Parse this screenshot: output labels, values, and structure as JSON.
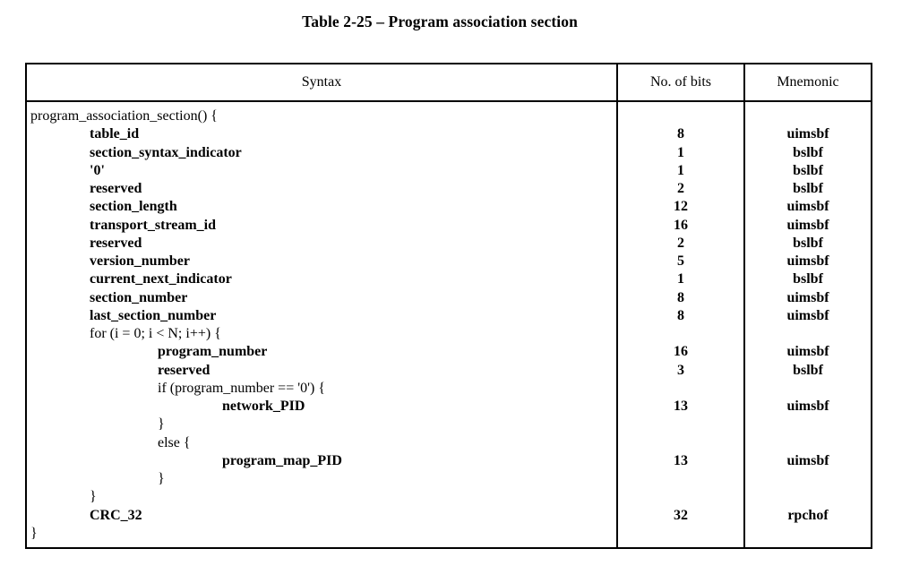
{
  "title": "Table 2-25 – Program association section",
  "table": {
    "headers": {
      "syntax": "Syntax",
      "bits": "No. of bits",
      "mnemonic": "Mnemonic"
    },
    "rows": [
      {
        "syntax": "program_association_section() {",
        "indent": 0,
        "bold": false,
        "bits": "",
        "mnemonic": ""
      },
      {
        "syntax": "table_id",
        "indent": 1,
        "bold": true,
        "bits": "8",
        "mnemonic": "uimsbf"
      },
      {
        "syntax": "section_syntax_indicator",
        "indent": 1,
        "bold": true,
        "bits": "1",
        "mnemonic": "bslbf"
      },
      {
        "syntax": "'0'",
        "indent": 1,
        "bold": true,
        "bits": "1",
        "mnemonic": "bslbf"
      },
      {
        "syntax": "reserved",
        "indent": 1,
        "bold": true,
        "bits": "2",
        "mnemonic": "bslbf"
      },
      {
        "syntax": "section_length",
        "indent": 1,
        "bold": true,
        "bits": "12",
        "mnemonic": "uimsbf"
      },
      {
        "syntax": "transport_stream_id",
        "indent": 1,
        "bold": true,
        "bits": "16",
        "mnemonic": "uimsbf"
      },
      {
        "syntax": "reserved",
        "indent": 1,
        "bold": true,
        "bits": "2",
        "mnemonic": "bslbf"
      },
      {
        "syntax": "version_number",
        "indent": 1,
        "bold": true,
        "bits": "5",
        "mnemonic": "uimsbf"
      },
      {
        "syntax": "current_next_indicator",
        "indent": 1,
        "bold": true,
        "bits": "1",
        "mnemonic": "bslbf"
      },
      {
        "syntax": "section_number",
        "indent": 1,
        "bold": true,
        "bits": "8",
        "mnemonic": "uimsbf"
      },
      {
        "syntax": "last_section_number",
        "indent": 1,
        "bold": true,
        "bits": "8",
        "mnemonic": "uimsbf"
      },
      {
        "syntax": "for (i = 0; i < N; i++) {",
        "indent": 1,
        "bold": false,
        "bits": "",
        "mnemonic": ""
      },
      {
        "syntax": "program_number",
        "indent": 2,
        "bold": true,
        "bits": "16",
        "mnemonic": "uimsbf"
      },
      {
        "syntax": "reserved",
        "indent": 2,
        "bold": true,
        "bits": "3",
        "mnemonic": "bslbf"
      },
      {
        "syntax": "if (program_number == '0') {",
        "indent": 2,
        "bold": false,
        "bits": "",
        "mnemonic": ""
      },
      {
        "syntax": "network_PID",
        "indent": 3,
        "bold": true,
        "bits": "13",
        "mnemonic": "uimsbf"
      },
      {
        "syntax": "}",
        "indent": 2,
        "bold": false,
        "bits": "",
        "mnemonic": ""
      },
      {
        "syntax": "else {",
        "indent": 2,
        "bold": false,
        "bits": "",
        "mnemonic": ""
      },
      {
        "syntax": "program_map_PID",
        "indent": 3,
        "bold": true,
        "bits": "13",
        "mnemonic": "uimsbf"
      },
      {
        "syntax": "}",
        "indent": 2,
        "bold": false,
        "bits": "",
        "mnemonic": ""
      },
      {
        "syntax": "}",
        "indent": 1,
        "bold": false,
        "bits": "",
        "mnemonic": ""
      },
      {
        "syntax": "CRC_32",
        "indent": 1,
        "bold": true,
        "bits": "32",
        "mnemonic": "rpchof"
      },
      {
        "syntax": "}",
        "indent": 0,
        "bold": false,
        "bits": "",
        "mnemonic": ""
      }
    ]
  }
}
